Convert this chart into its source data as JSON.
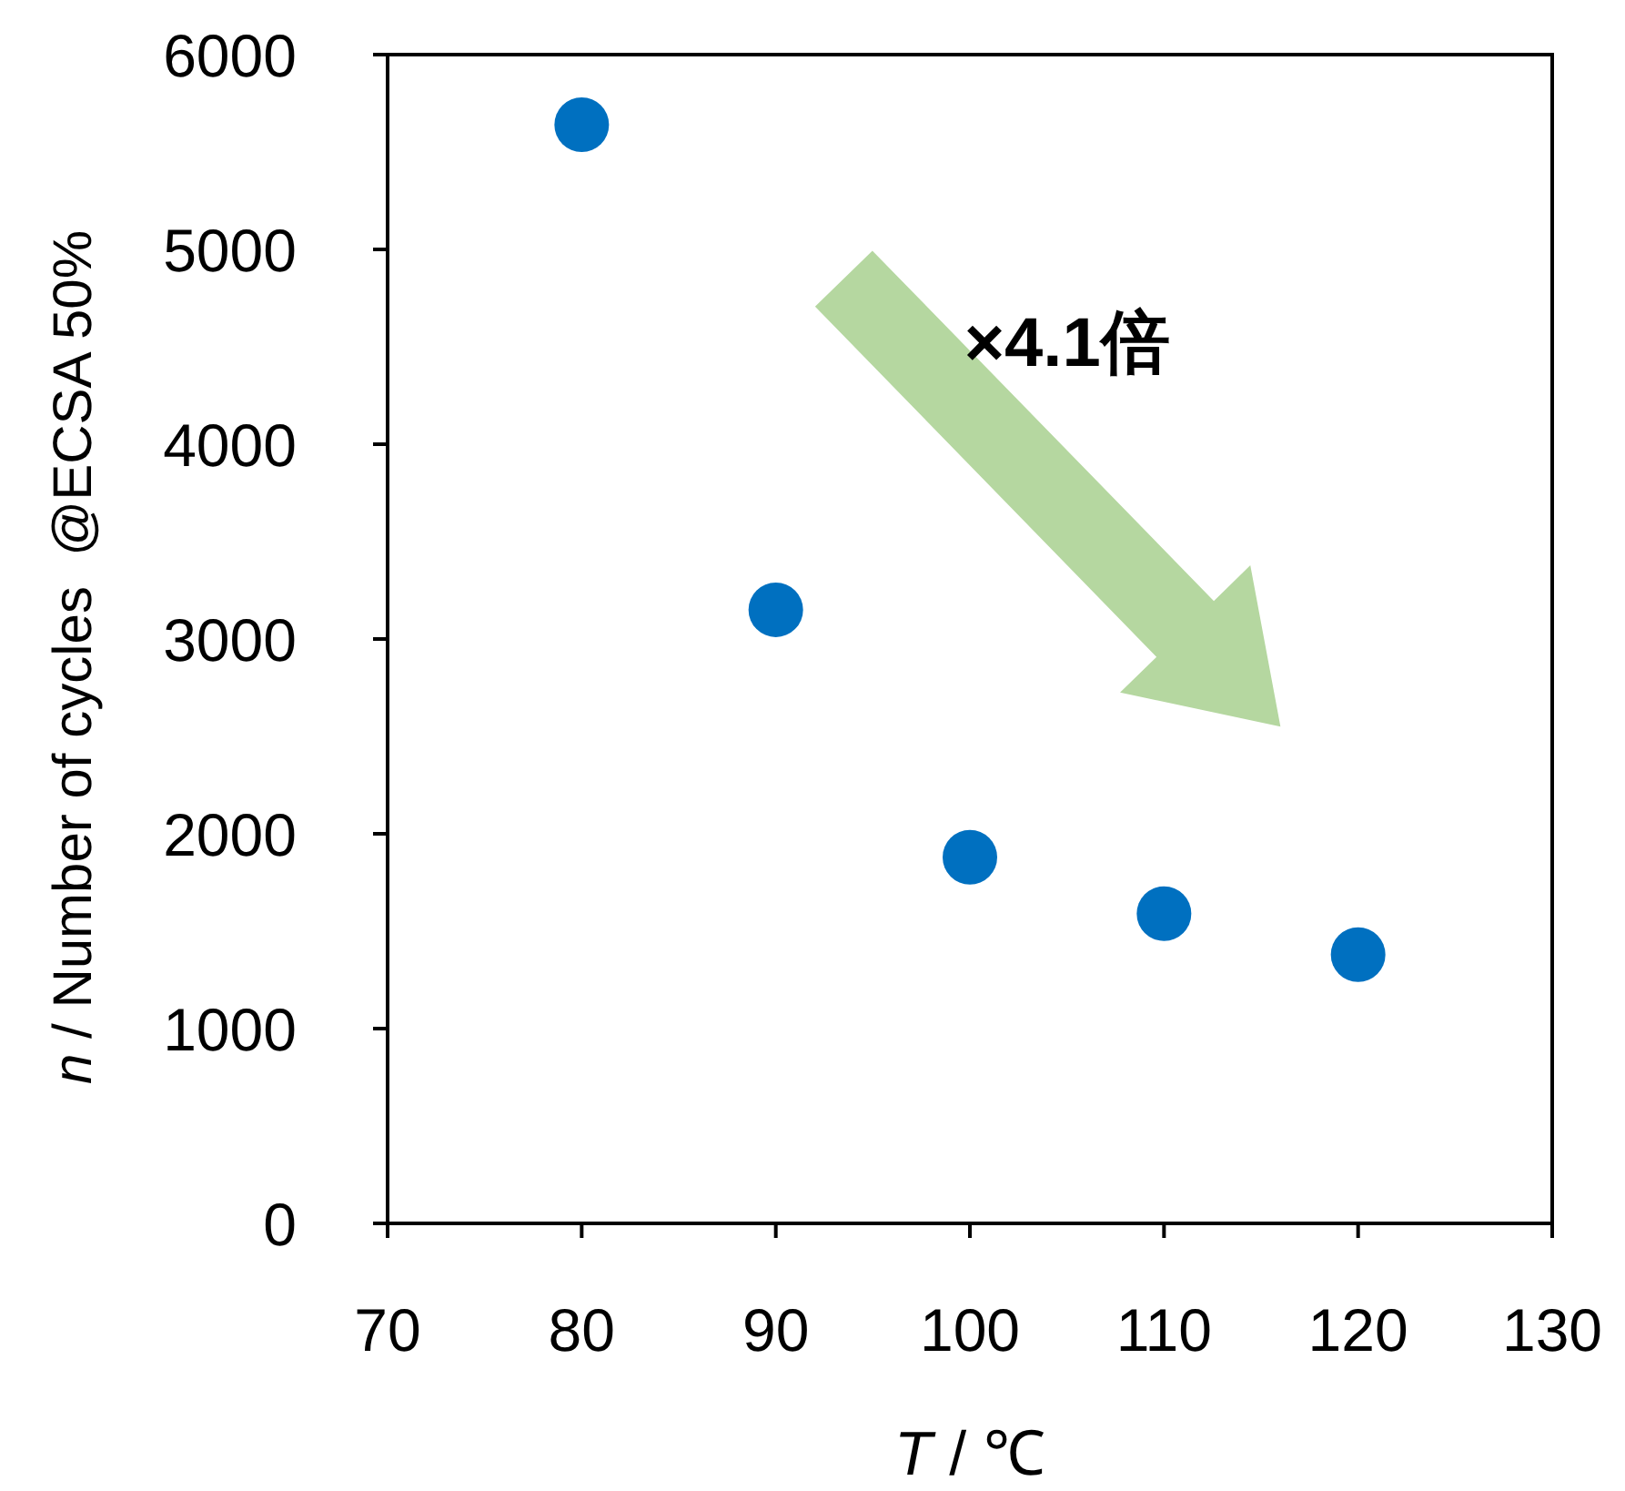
{
  "chart_data": {
    "type": "scatter",
    "xlabel": "*T* / ℃",
    "ylabel": "*n* / Number of cycles  @ECSA 50%",
    "x": [
      80,
      90,
      100,
      110,
      120
    ],
    "series": [
      {
        "color": "#0070c0",
        "values": [
          5640,
          3150,
          1880,
          1590,
          1380
        ]
      }
    ],
    "xlim": [
      70,
      130
    ],
    "xticks": [
      70,
      80,
      90,
      100,
      110,
      120,
      130
    ],
    "ylim": [
      0,
      6000
    ],
    "yticks": [
      0,
      1000,
      2000,
      3000,
      4000,
      5000,
      6000
    ],
    "marker": "circle",
    "grid": false,
    "annotations": [
      "×4.1倍"
    ]
  }
}
